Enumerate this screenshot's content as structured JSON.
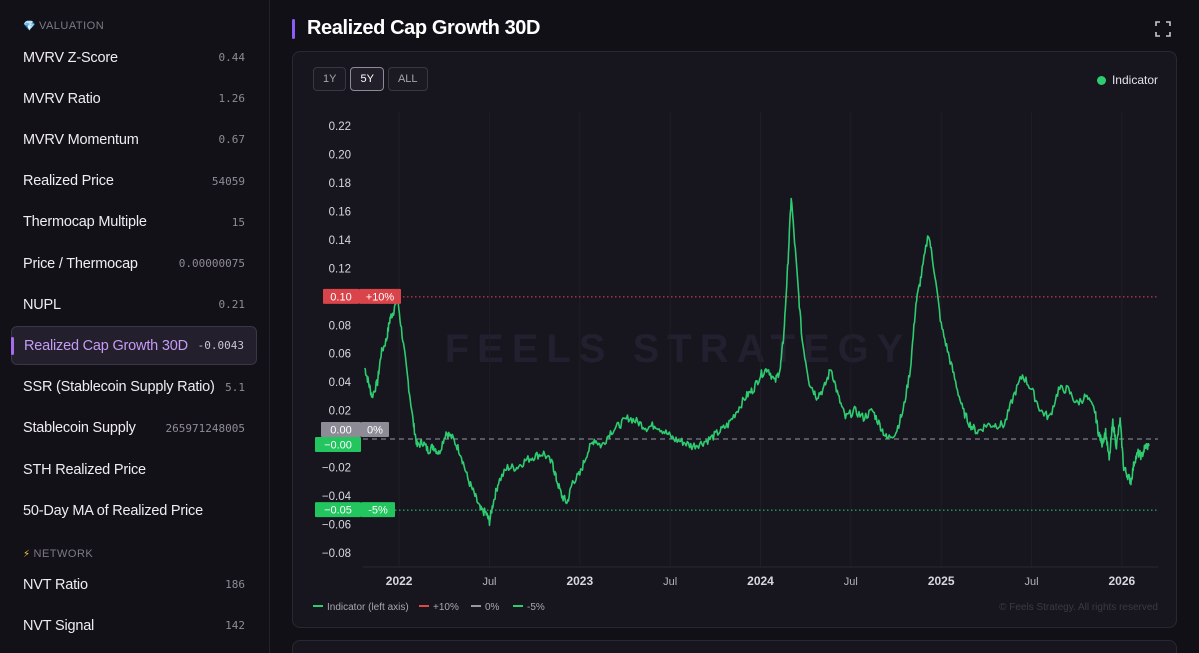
{
  "sidebar": {
    "valuation_header": "VALUATION",
    "valuation_icon": "gem-icon",
    "items": [
      {
        "label": "MVRV Z-Score",
        "value": "0.44"
      },
      {
        "label": "MVRV Ratio",
        "value": "1.26"
      },
      {
        "label": "MVRV Momentum",
        "value": "0.67"
      },
      {
        "label": "Realized Price",
        "value": "54059"
      },
      {
        "label": "Thermocap Multiple",
        "value": "15"
      },
      {
        "label": "Price / Thermocap",
        "value": "0.00000075"
      },
      {
        "label": "NUPL",
        "value": "0.21"
      },
      {
        "label": "Realized Cap Growth 30D",
        "value": "-0.0043"
      },
      {
        "label": "SSR (Stablecoin Supply Ratio)",
        "value": "5.1"
      },
      {
        "label": "Stablecoin Supply",
        "value": "265971248005"
      },
      {
        "label": "STH Realized Price",
        "value": ""
      },
      {
        "label": "50-Day MA of Realized Price",
        "value": ""
      }
    ],
    "network_header": "NETWORK",
    "network_icon": "lightning-icon",
    "network_items": [
      {
        "label": "NVT Ratio",
        "value": "186"
      },
      {
        "label": "NVT Signal",
        "value": "142"
      }
    ]
  },
  "header": {
    "title": "Realized Cap Growth 30D"
  },
  "range": {
    "tabs": [
      "1Y",
      "5Y",
      "ALL"
    ],
    "selected": "5Y"
  },
  "legend_top": "Indicator",
  "watermark": "FEELS STRATEGY",
  "copyright": "© Feels Strategy. All rights reserved",
  "colors": {
    "indicator": "#2ecc71",
    "upper": "#e04848",
    "zero": "#9a98a2",
    "lower": "#2ecc71",
    "accent": "#8b5cf6"
  },
  "chart_data": {
    "type": "line",
    "title": "Realized Cap Growth 30D",
    "ylim": [
      -0.09,
      0.23
    ],
    "y_ticks": [
      "0.22",
      "0.20",
      "0.18",
      "0.16",
      "0.14",
      "0.12",
      "0.10",
      "0.08",
      "0.06",
      "0.04",
      "0.02",
      "0.00",
      "−0.02",
      "−0.04",
      "−0.06",
      "−0.08"
    ],
    "x_ticks": [
      "2022",
      "Jul",
      "2023",
      "Jul",
      "2024",
      "Jul",
      "2025",
      "Jul",
      "2026"
    ],
    "x_tick_pos": [
      2022.0,
      2022.5,
      2023.0,
      2023.5,
      2024.0,
      2024.5,
      2025.0,
      2025.5,
      2026.0
    ],
    "xlim": [
      2021.8,
      2026.2
    ],
    "series": [
      {
        "name": "Indicator (left axis)",
        "x": [
          2021.81,
          2021.83,
          2021.85,
          2021.88,
          2021.9,
          2021.93,
          2021.95,
          2021.97,
          2021.99,
          2022.02,
          2022.05,
          2022.08,
          2022.1,
          2022.13,
          2022.16,
          2022.19,
          2022.22,
          2022.26,
          2022.3,
          2022.34,
          2022.38,
          2022.42,
          2022.45,
          2022.48,
          2022.5,
          2022.52,
          2022.55,
          2022.6,
          2022.65,
          2022.7,
          2022.75,
          2022.8,
          2022.85,
          2022.87,
          2022.9,
          2022.93,
          2022.96,
          2023.0,
          2023.04,
          2023.08,
          2023.12,
          2023.17,
          2023.22,
          2023.27,
          2023.32,
          2023.37,
          2023.42,
          2023.47,
          2023.52,
          2023.57,
          2023.62,
          2023.67,
          2023.72,
          2023.77,
          2023.82,
          2023.87,
          2023.92,
          2023.96,
          2024.0,
          2024.04,
          2024.08,
          2024.11,
          2024.13,
          2024.15,
          2024.17,
          2024.2,
          2024.23,
          2024.27,
          2024.31,
          2024.35,
          2024.39,
          2024.43,
          2024.47,
          2024.52,
          2024.57,
          2024.62,
          2024.66,
          2024.7,
          2024.75,
          2024.79,
          2024.83,
          2024.86,
          2024.89,
          2024.93,
          2024.96,
          2025.0,
          2025.04,
          2025.08,
          2025.12,
          2025.16,
          2025.2,
          2025.25,
          2025.3,
          2025.35,
          2025.4,
          2025.45,
          2025.5,
          2025.55,
          2025.6,
          2025.65,
          2025.7,
          2025.75,
          2025.8,
          2025.85,
          2025.87,
          2025.89,
          2025.91,
          2025.93,
          2025.95,
          2025.97,
          2025.99,
          2026.01,
          2026.03,
          2026.05,
          2026.07,
          2026.09,
          2026.11,
          2026.13,
          2026.15
        ],
        "values": [
          0.05,
          0.04,
          0.03,
          0.04,
          0.06,
          0.07,
          0.085,
          0.09,
          0.1,
          0.07,
          0.04,
          0.01,
          -0.005,
          -0.002,
          -0.008,
          -0.005,
          -0.01,
          0.005,
          0.0,
          -0.01,
          -0.028,
          -0.04,
          -0.05,
          -0.052,
          -0.058,
          -0.045,
          -0.03,
          -0.02,
          -0.02,
          -0.015,
          -0.012,
          -0.01,
          -0.018,
          -0.028,
          -0.04,
          -0.045,
          -0.03,
          -0.025,
          -0.01,
          0.0,
          -0.005,
          0.005,
          0.01,
          0.015,
          0.012,
          0.008,
          0.01,
          0.005,
          0.0,
          -0.002,
          -0.005,
          -0.003,
          0.0,
          0.005,
          0.01,
          0.02,
          0.03,
          0.035,
          0.045,
          0.05,
          0.04,
          0.05,
          0.075,
          0.12,
          0.17,
          0.12,
          0.07,
          0.04,
          0.03,
          0.035,
          0.05,
          0.03,
          0.015,
          0.02,
          0.015,
          0.02,
          0.01,
          0.0,
          0.005,
          0.02,
          0.05,
          0.095,
          0.115,
          0.145,
          0.12,
          0.08,
          0.06,
          0.04,
          0.02,
          0.01,
          0.005,
          0.01,
          0.01,
          0.01,
          0.03,
          0.045,
          0.035,
          0.02,
          0.015,
          0.035,
          0.035,
          0.025,
          0.03,
          0.02,
          0.005,
          -0.003,
          0.005,
          -0.015,
          0.012,
          -0.005,
          0.013,
          -0.02,
          -0.025,
          -0.03,
          -0.015,
          -0.01,
          -0.012,
          -0.005,
          -0.005
        ]
      },
      {
        "name": "+10%",
        "value": 0.1
      },
      {
        "name": "0%",
        "value": 0.0
      },
      {
        "name": "-5%",
        "value": -0.05
      }
    ],
    "marker_labels": {
      "upper_value": "0.10",
      "upper_pct": "+10%",
      "zero_value": "0.00",
      "zero_pct": "0%",
      "indicator_value": "−0.00",
      "lower_value": "−0.05",
      "lower_pct": "-5%"
    },
    "bottom_legend": [
      "Indicator (left axis)",
      "+10%",
      "0%",
      "-5%"
    ]
  }
}
